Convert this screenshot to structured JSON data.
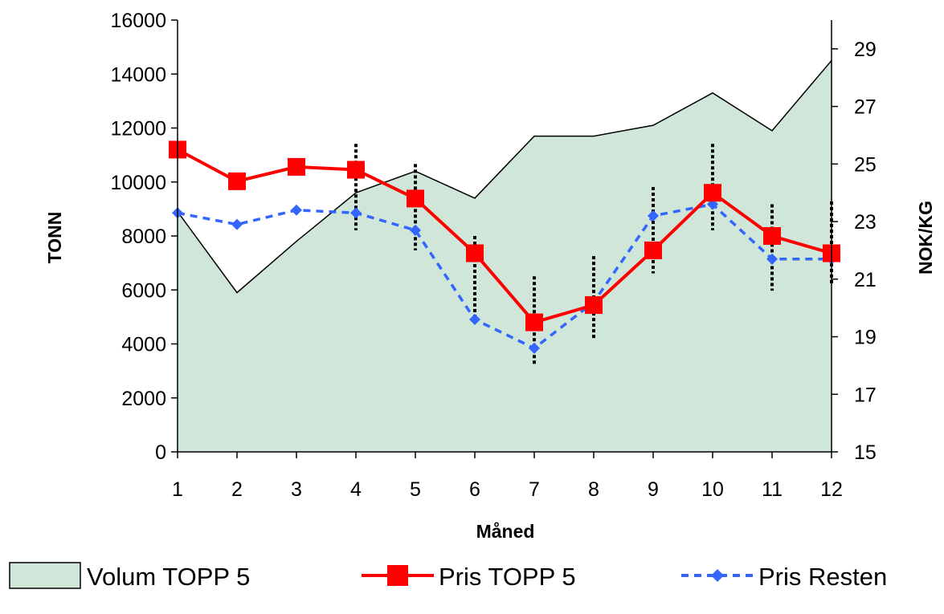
{
  "chart_data": {
    "type": "line",
    "x": [
      1,
      2,
      3,
      4,
      5,
      6,
      7,
      8,
      9,
      10,
      11,
      12
    ],
    "xlabel": "Måned",
    "ylabel_left": "TONN",
    "ylabel_right": "NOK/KG",
    "ylim_left": [
      0,
      16000
    ],
    "ylim_right": [
      15,
      30
    ],
    "yticks_left": [
      "0",
      "2000",
      "4000",
      "6000",
      "8000",
      "10000",
      "12000",
      "14000",
      "16000"
    ],
    "yticks_right": [
      "15",
      "17",
      "19",
      "21",
      "23",
      "25",
      "27",
      "29"
    ],
    "xticks": [
      "1",
      "2",
      "3",
      "4",
      "5",
      "6",
      "7",
      "8",
      "9",
      "10",
      "11",
      "12"
    ],
    "grid": false,
    "legend_position": "bottom",
    "series": [
      {
        "name": "Volum TOPP 5",
        "kind": "area",
        "axis": "left",
        "color": "#cfe6d8",
        "values": [
          8900,
          5900,
          7800,
          9600,
          10400,
          9400,
          11700,
          11700,
          12100,
          13300,
          11900,
          14500
        ]
      },
      {
        "name": "Pris TOPP 5",
        "kind": "line",
        "axis": "right",
        "color": "#ff0000",
        "marker": "square",
        "values": [
          25.5,
          24.4,
          24.9,
          24.8,
          23.8,
          21.9,
          19.5,
          20.1,
          22.0,
          24.0,
          22.5,
          21.9
        ]
      },
      {
        "name": "Pris Resten",
        "kind": "line",
        "axis": "right",
        "color": "#3366ff",
        "marker": "diamond",
        "dashed": true,
        "values": [
          23.3,
          22.9,
          23.4,
          23.3,
          22.7,
          19.6,
          18.6,
          20.2,
          23.2,
          23.6,
          21.7,
          21.7
        ]
      }
    ],
    "ranges": [
      {
        "x": 4,
        "low": 22.7,
        "high": 25.7
      },
      {
        "x": 5,
        "low": 22.0,
        "high": 25.0
      },
      {
        "x": 6,
        "low": 19.5,
        "high": 22.5
      },
      {
        "x": 7,
        "low": 18.0,
        "high": 21.1
      },
      {
        "x": 8,
        "low": 18.9,
        "high": 21.8
      },
      {
        "x": 9,
        "low": 21.2,
        "high": 24.2
      },
      {
        "x": 10,
        "low": 22.7,
        "high": 25.7
      },
      {
        "x": 11,
        "low": 20.6,
        "high": 23.6
      },
      {
        "x": 12,
        "low": 20.8,
        "high": 23.7
      }
    ]
  }
}
